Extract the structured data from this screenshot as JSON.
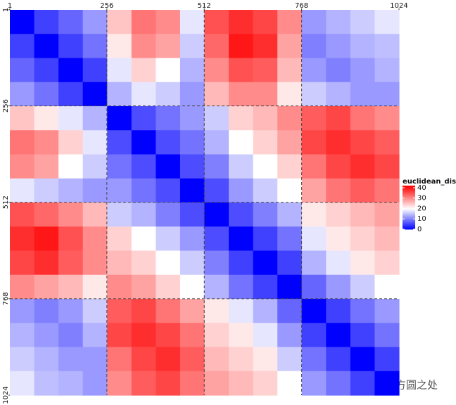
{
  "chart_data": {
    "type": "heatmap",
    "xlim": [
      1,
      1024
    ],
    "ylim": [
      1024,
      1
    ],
    "xticks": [
      1,
      256,
      512,
      768,
      1024
    ],
    "yticks": [
      1,
      256,
      512,
      768,
      1024
    ],
    "legend_title": "euclidean_dist",
    "zlim": [
      0,
      42
    ],
    "zticks": [
      0,
      10,
      20,
      30,
      40
    ],
    "low_color": "#0000ff",
    "mid_color": "#ffffff",
    "high_color": "#ff0000",
    "midpoint": 20,
    "values": [
      [
        0,
        5,
        8,
        12,
        25,
        32,
        30,
        18,
        35,
        38,
        36,
        30,
        12,
        14,
        16,
        18
      ],
      [
        5,
        0,
        5,
        9,
        22,
        30,
        28,
        16,
        33,
        40,
        38,
        28,
        10,
        12,
        14,
        15
      ],
      [
        8,
        5,
        0,
        5,
        18,
        24,
        20,
        14,
        30,
        35,
        34,
        26,
        12,
        10,
        12,
        14
      ],
      [
        12,
        9,
        5,
        0,
        14,
        18,
        16,
        12,
        26,
        30,
        30,
        22,
        16,
        14,
        12,
        12
      ],
      [
        25,
        22,
        18,
        14,
        0,
        6,
        9,
        12,
        16,
        24,
        26,
        30,
        34,
        36,
        32,
        30
      ],
      [
        32,
        30,
        24,
        18,
        6,
        0,
        6,
        9,
        14,
        20,
        24,
        28,
        36,
        38,
        36,
        34
      ],
      [
        30,
        28,
        20,
        16,
        9,
        6,
        0,
        6,
        10,
        16,
        20,
        24,
        32,
        36,
        38,
        36
      ],
      [
        18,
        16,
        14,
        12,
        12,
        9,
        6,
        0,
        6,
        12,
        16,
        20,
        28,
        32,
        34,
        32
      ],
      [
        35,
        33,
        30,
        26,
        16,
        14,
        10,
        6,
        0,
        6,
        10,
        14,
        22,
        24,
        26,
        28
      ],
      [
        38,
        40,
        35,
        30,
        24,
        20,
        16,
        12,
        6,
        0,
        5,
        9,
        18,
        22,
        24,
        26
      ],
      [
        36,
        38,
        34,
        30,
        26,
        24,
        20,
        16,
        10,
        5,
        0,
        5,
        14,
        18,
        22,
        24
      ],
      [
        30,
        28,
        26,
        22,
        30,
        28,
        24,
        20,
        14,
        9,
        5,
        0,
        8,
        12,
        16,
        20
      ],
      [
        12,
        10,
        12,
        16,
        34,
        36,
        32,
        28,
        22,
        18,
        14,
        8,
        0,
        5,
        9,
        12
      ],
      [
        14,
        12,
        10,
        14,
        36,
        38,
        36,
        32,
        24,
        22,
        18,
        12,
        5,
        0,
        5,
        9
      ],
      [
        16,
        14,
        12,
        12,
        32,
        36,
        38,
        34,
        26,
        24,
        22,
        16,
        9,
        5,
        0,
        5
      ],
      [
        18,
        15,
        14,
        12,
        30,
        34,
        36,
        32,
        28,
        26,
        24,
        20,
        12,
        9,
        5,
        0
      ]
    ],
    "watermark": "方圆之处"
  }
}
